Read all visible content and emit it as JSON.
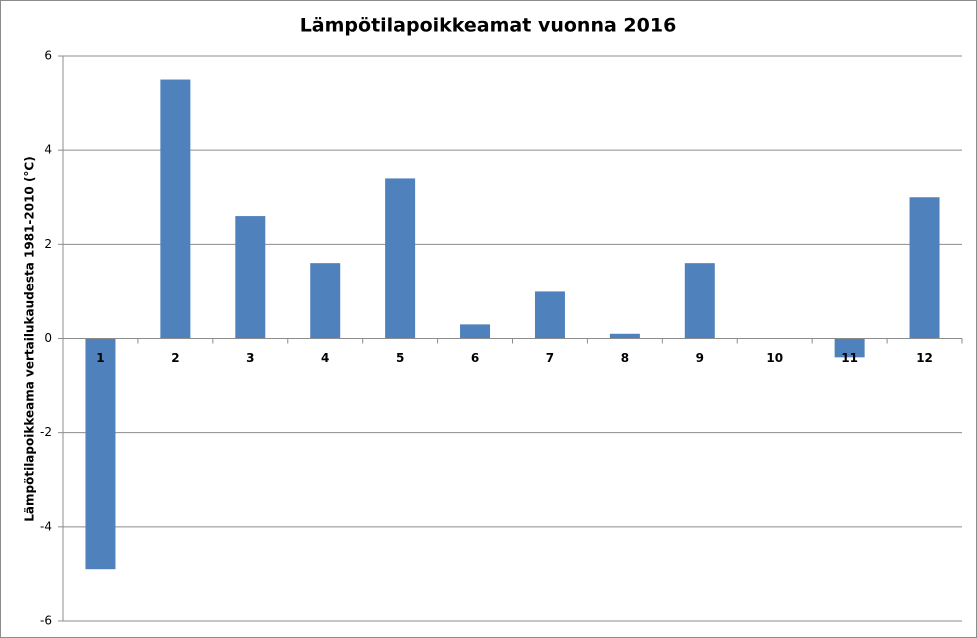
{
  "chart_data": {
    "type": "bar",
    "title": "Lämpötilapoikkeamat vuonna 2016",
    "y_label": "Lämpötilapoikkeama vertailukaudesta 1981-2010 (°C)",
    "categories": [
      "1",
      "2",
      "3",
      "4",
      "5",
      "6",
      "7",
      "8",
      "9",
      "10",
      "11",
      "12"
    ],
    "values": [
      -4.9,
      5.5,
      2.6,
      1.6,
      3.4,
      0.3,
      1.0,
      0.1,
      1.6,
      0,
      -0.4,
      3.0
    ],
    "color": "#4f81bd",
    "ylim": [
      -6,
      6
    ],
    "yticks": [
      -6,
      -4,
      -2,
      0,
      2,
      4,
      6
    ],
    "grid": true
  }
}
